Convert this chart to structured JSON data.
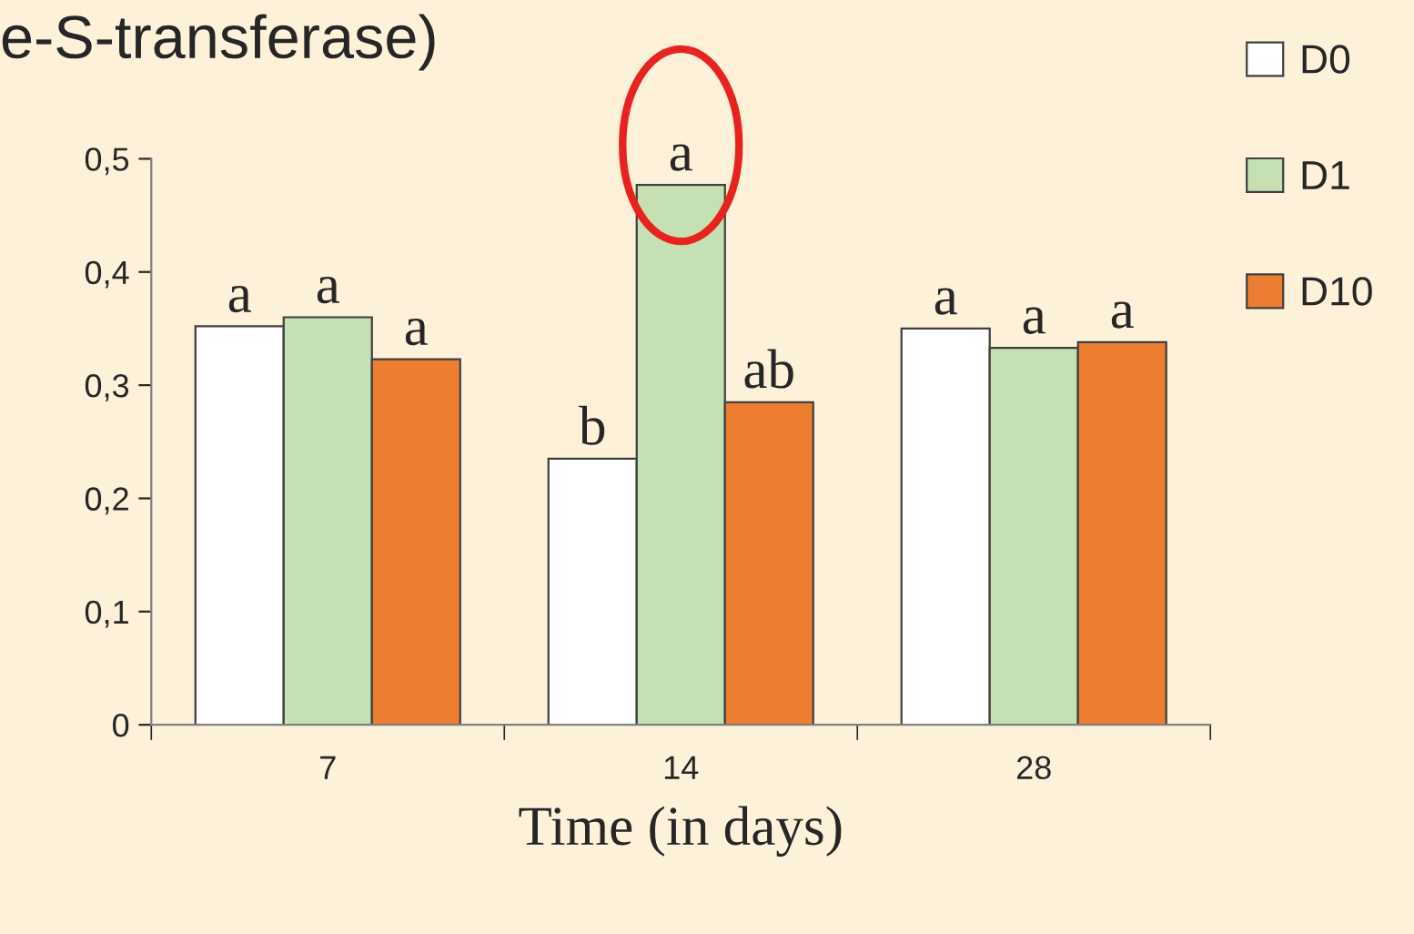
{
  "chart_data": {
    "type": "bar",
    "title": "e-S-transferase)",
    "xlabel": "Time (in days)",
    "categories": [
      "7",
      "14",
      "28"
    ],
    "series": [
      {
        "name": "D0",
        "color": "#ffffff",
        "values": [
          0.352,
          0.235,
          0.35
        ]
      },
      {
        "name": "D1",
        "color": "#c5e0b3",
        "values": [
          0.36,
          0.477,
          0.333
        ]
      },
      {
        "name": "D10",
        "color": "#ed7d31",
        "values": [
          0.323,
          0.285,
          0.338
        ]
      }
    ],
    "ylim": [
      0,
      0.5
    ],
    "yticks": [
      0,
      {
        "value": 0.1,
        "label": "0,1"
      },
      {
        "value": 0.2,
        "label": "0,2"
      },
      {
        "value": 0.3,
        "label": "0,3"
      },
      {
        "value": 0.4,
        "label": "0,4"
      },
      {
        "value": 0.5,
        "label": "0,5"
      }
    ],
    "annotations": [
      "a",
      "a",
      "a",
      "b",
      "a",
      "ab",
      "a",
      "a",
      "a"
    ],
    "grid": false,
    "legend": "right"
  }
}
